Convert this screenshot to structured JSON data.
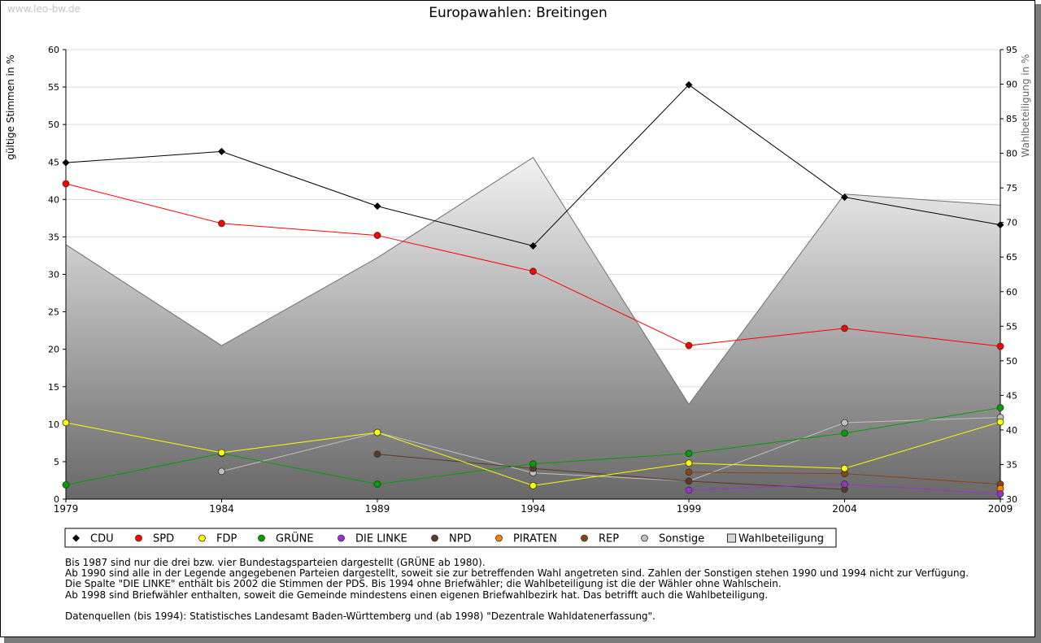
{
  "watermark": "www.leo-bw.de",
  "chart_data": {
    "type": "line",
    "title": "Europawahlen: Breitingen",
    "ylabel": "gültige Stimmen in %",
    "ylabel_right": "Wahlbeteiligung in %",
    "x": [
      "1979",
      "1984",
      "1989",
      "1994",
      "1999",
      "2004",
      "2009"
    ],
    "ylim": [
      0,
      60
    ],
    "yticks": [
      "0",
      "5",
      "10",
      "15",
      "20",
      "25",
      "30",
      "35",
      "40",
      "45",
      "50",
      "55",
      "60"
    ],
    "ylim_right": [
      30,
      95
    ],
    "yticks_right": [
      "30",
      "35",
      "40",
      "45",
      "50",
      "55",
      "60",
      "65",
      "70",
      "75",
      "80",
      "85",
      "90",
      "95"
    ],
    "grid": true,
    "legend_position": "bottom",
    "area_series": {
      "name": "Wahlbeteiligung",
      "axis": "right",
      "values": [
        66.8,
        52.2,
        64.9,
        79.4,
        43.7,
        74.1,
        72.5
      ]
    },
    "series": [
      {
        "name": "CDU",
        "color": "#000000",
        "values": [
          44.9,
          46.4,
          39.1,
          33.8,
          55.3,
          40.3,
          36.6
        ]
      },
      {
        "name": "SPD",
        "color": "#ff0000",
        "values": [
          42.1,
          36.8,
          35.2,
          30.4,
          20.5,
          22.8,
          20.4
        ]
      },
      {
        "name": "FDP",
        "color": "#ffff00",
        "values": [
          10.2,
          6.2,
          8.9,
          1.8,
          4.8,
          4.1,
          10.3
        ]
      },
      {
        "name": "GRÜNE",
        "color": "#00a000",
        "values": [
          1.9,
          6.1,
          2.0,
          4.7,
          6.1,
          8.8,
          12.2
        ]
      },
      {
        "name": "DIE LINKE",
        "color": "#9933cc",
        "values": [
          null,
          null,
          null,
          null,
          1.2,
          2.0,
          0.7
        ]
      },
      {
        "name": "NPD",
        "color": "#5a3a28",
        "values": [
          null,
          null,
          6.0,
          4.1,
          2.4,
          1.3,
          null
        ]
      },
      {
        "name": "PIRATEN",
        "color": "#ff7f00",
        "values": [
          null,
          null,
          null,
          null,
          null,
          null,
          1.4
        ]
      },
      {
        "name": "REP",
        "color": "#8b4513",
        "values": [
          null,
          null,
          null,
          null,
          3.6,
          3.4,
          2.0
        ]
      },
      {
        "name": "Sonstige",
        "color": "#c0c0c0",
        "values": [
          null,
          3.7,
          8.9,
          3.5,
          2.4,
          10.2,
          10.9
        ]
      }
    ],
    "legend": [
      "CDU",
      "SPD",
      "FDP",
      "GRÜNE",
      "DIE LINKE",
      "NPD",
      "PIRATEN",
      "REP",
      "Sonstige",
      "Wahlbeteiligung"
    ]
  },
  "notes": [
    "Bis 1987 sind nur die drei bzw. vier Bundestagsparteien dargestellt (GRÜNE ab 1980).",
    "Ab 1990 sind alle in der Legende angegebenen Parteien dargestellt, soweit sie zur betreffenden Wahl angetreten sind. Zahlen der Sonstigen stehen 1990 und 1994 nicht zur Verfügung.",
    "Die Spalte \"DIE LINKE\" enthält bis 2002 die Stimmen der PDS. Bis 1994 ohne Briefwähler; die Wahlbeteiligung ist die der Wähler ohne Wahlschein.",
    "Ab 1998 sind Briefwähler enthalten, soweit die Gemeinde mindestens einen eigenen Briefwahlbezirk hat. Das betrifft auch die Wahlbeteiligung."
  ],
  "source": "Datenquellen (bis 1994): Statistisches Landesamt Baden-Württemberg und (ab 1998) \"Dezentrale Wahldatenerfassung\"."
}
